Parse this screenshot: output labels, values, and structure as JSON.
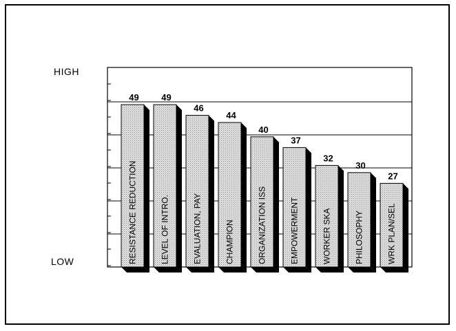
{
  "chart_data": {
    "type": "bar",
    "title": "",
    "xlabel": "",
    "ylabel": "",
    "y_axis_labels": {
      "high": "HIGH",
      "low": "LOW"
    },
    "categories": [
      "RESISTANCE REDUCTION",
      "LEVEL OF INTRO.",
      "EVALUATION, PAY",
      "CHAMPION",
      "ORGANIZATION ISS",
      "EMPOWERMENT",
      "WORKER SKA",
      "PHILOSOPHY",
      "WRK PLAN/SEL"
    ],
    "values": [
      49,
      49,
      46,
      44,
      40,
      37,
      32,
      30,
      27
    ],
    "data_labels": [
      "49",
      "49",
      "46",
      "44",
      "40",
      "37",
      "32",
      "30",
      "27"
    ],
    "grid": true,
    "bar_fill": "#d4d4d4",
    "bar_shadow": "#000000"
  }
}
